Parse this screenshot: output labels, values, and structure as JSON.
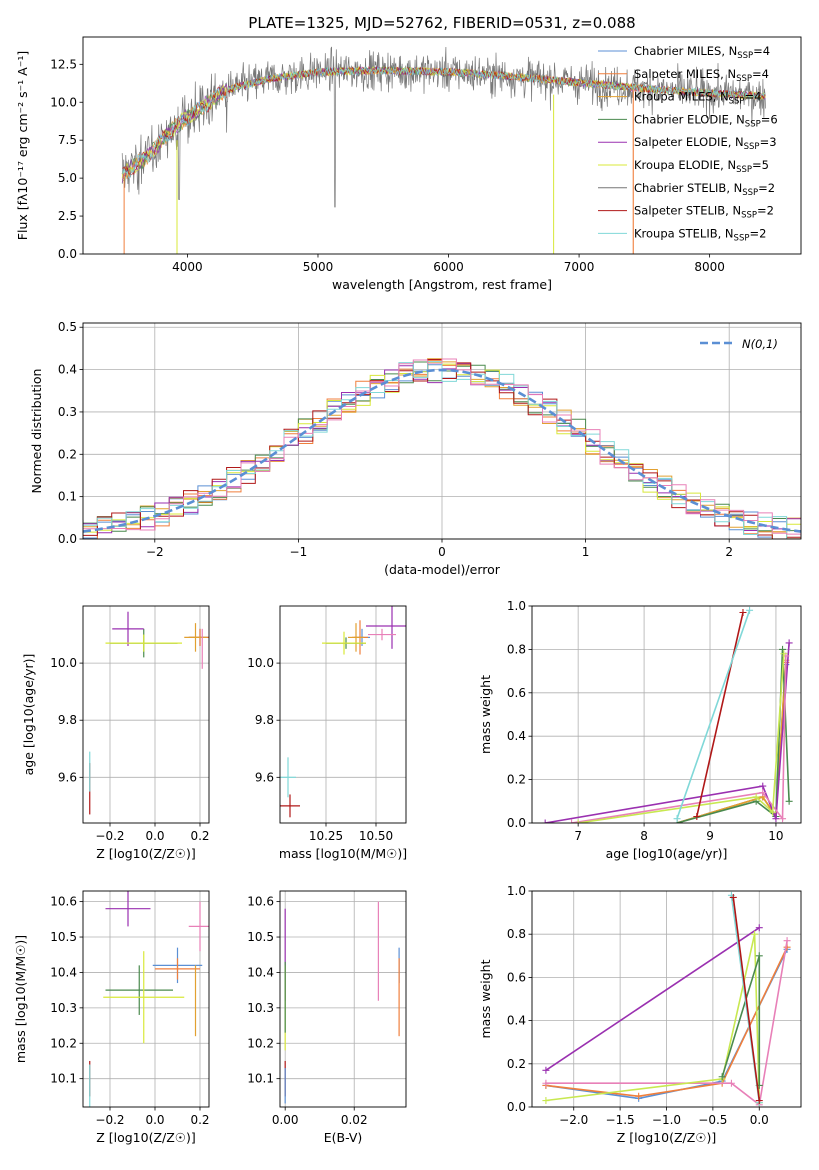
{
  "figure": {
    "title": "PLATE=1325, MJD=52762, FIBERID=0531, z=0.088"
  },
  "colors": {
    "chabrier_miles": "#5b8fd4",
    "salpeter_miles": "#f07f3c",
    "kroupa_miles": "#e2a030",
    "chabrier_elodie": "#4a8a4e",
    "salpeter_elodie": "#9a30b0",
    "kroupa_elodie": "#d8e83a",
    "chabrier_stelib": "#777777",
    "salpeter_stelib": "#b01818",
    "kroupa_stelib": "#80d8d8",
    "purple_line": "#9a30b0",
    "pink_line": "#e880b8",
    "green_line": "#c8e850",
    "normal_curve": "#5b8fd4"
  },
  "chart_data": [
    {
      "id": "spectrum",
      "type": "line",
      "xlabel": "wavelength [Angstrom, rest frame]",
      "ylabel": "Flux [fλ10⁻¹⁷ erg cm⁻² s⁻¹ A⁻¹]",
      "xlim": [
        3200,
        8700
      ],
      "ylim": [
        0,
        14.3
      ],
      "xticks": [
        4000,
        5000,
        6000,
        7000,
        8000
      ],
      "yticks": [
        0.0,
        2.5,
        5.0,
        7.5,
        10.0,
        12.5
      ],
      "data_range": [
        3500,
        8430
      ],
      "continuum": [
        [
          3500,
          5.2
        ],
        [
          3700,
          6.5
        ],
        [
          3900,
          8.4
        ],
        [
          4100,
          9.6
        ],
        [
          4300,
          10.8
        ],
        [
          4600,
          11.5
        ],
        [
          5000,
          12.0
        ],
        [
          5500,
          12.1
        ],
        [
          6000,
          12.0
        ],
        [
          6500,
          11.7
        ],
        [
          7000,
          11.3
        ],
        [
          7500,
          10.9
        ],
        [
          8000,
          10.6
        ],
        [
          8430,
          10.4
        ]
      ],
      "legend": [
        {
          "label": "Chabrier MILES, N",
          "sub": "SSP",
          "value": "=4"
        },
        {
          "label": "Salpeter MILES, N",
          "sub": "SSP",
          "value": "=4"
        },
        {
          "label": "Kroupa MILES, N",
          "sub": "SSP",
          "value": "=4"
        },
        {
          "label": "Chabrier ELODIE, N",
          "sub": "SSP",
          "value": "=6"
        },
        {
          "label": "Salpeter ELODIE, N",
          "sub": "SSP",
          "value": "=3"
        },
        {
          "label": "Kroupa ELODIE, N",
          "sub": "SSP",
          "value": "=5"
        },
        {
          "label": "Chabrier STELIB, N",
          "sub": "SSP",
          "value": "=2"
        },
        {
          "label": "Salpeter STELIB, N",
          "sub": "SSP",
          "value": "=2"
        },
        {
          "label": "Kroupa STELIB, N",
          "sub": "SSP",
          "value": "=2"
        }
      ]
    },
    {
      "id": "residuals",
      "type": "step",
      "xlabel": "(data-model)/error",
      "ylabel": "Normed distribution",
      "xlim": [
        -2.5,
        2.5
      ],
      "ylim": [
        0,
        0.51
      ],
      "xticks": [
        -2,
        -1,
        0,
        1,
        2
      ],
      "yticks": [
        0.0,
        0.1,
        0.2,
        0.3,
        0.4,
        0.5
      ],
      "bin_width": 0.1,
      "legend": "N(0,1)"
    },
    {
      "id": "age_vs_z",
      "type": "errorbar",
      "xlabel": "Z [log10(Z/Z☉)]",
      "ylabel": "age  [log10(age/yr)]",
      "xlim": [
        -0.32,
        0.24
      ],
      "ylim": [
        9.44,
        10.2
      ],
      "xticks": [
        -0.2,
        0.0,
        0.2
      ],
      "yticks": [
        9.6,
        9.8,
        10.0
      ],
      "points": [
        {
          "c": "chabrier_miles",
          "x": 0.2,
          "xe": 0.05,
          "y": 10.09,
          "ye": 0.03
        },
        {
          "c": "salpeter_miles",
          "x": 0.2,
          "xe": 0.05,
          "y": 10.09,
          "ye": 0.03
        },
        {
          "c": "kroupa_miles",
          "x": 0.18,
          "xe": 0.05,
          "y": 10.09,
          "ye": 0.05
        },
        {
          "c": "chabrier_elodie",
          "x": -0.05,
          "xe": 0.15,
          "y": 10.07,
          "ye": 0.05
        },
        {
          "c": "salpeter_elodie",
          "x": -0.12,
          "xe": 0.07,
          "y": 10.12,
          "ye": 0.06
        },
        {
          "c": "kroupa_elodie",
          "x": -0.05,
          "xe": 0.17,
          "y": 10.07,
          "ye": 0.03
        },
        {
          "c": "salpeter_stelib",
          "x": -0.29,
          "xe": 0.0,
          "y": 9.56,
          "ye": 0.09
        },
        {
          "c": "kroupa_stelib",
          "x": -0.29,
          "xe": 0.0,
          "y": 9.62,
          "ye": 0.07
        },
        {
          "c": "pink_line",
          "x": 0.21,
          "xe": 0.0,
          "y": 10.05,
          "ye": 0.07
        }
      ]
    },
    {
      "id": "age_vs_mass",
      "type": "errorbar",
      "xlabel": "mass [log10(M/M☉)]",
      "ylabel": "",
      "xlim": [
        10.02,
        10.65
      ],
      "ylim": [
        9.44,
        10.2
      ],
      "xticks": [
        10.25,
        10.5
      ],
      "yticks": [
        9.6,
        9.8,
        10.0
      ],
      "points": [
        {
          "c": "chabrier_miles",
          "x": 10.43,
          "xe": 0.04,
          "y": 10.09,
          "ye": 0.03
        },
        {
          "c": "salpeter_miles",
          "x": 10.42,
          "xe": 0.04,
          "y": 10.09,
          "ye": 0.06
        },
        {
          "c": "kroupa_miles",
          "x": 10.4,
          "xe": 0.04,
          "y": 10.09,
          "ye": 0.05
        },
        {
          "c": "chabrier_elodie",
          "x": 10.35,
          "xe": 0.1,
          "y": 10.07,
          "ye": 0.02
        },
        {
          "c": "salpeter_elodie",
          "x": 10.58,
          "xe": 0.13,
          "y": 10.13,
          "ye": 0.08
        },
        {
          "c": "kroupa_elodie",
          "x": 10.34,
          "xe": 0.11,
          "y": 10.07,
          "ye": 0.04
        },
        {
          "c": "salpeter_stelib",
          "x": 10.07,
          "xe": 0.05,
          "y": 9.5,
          "ye": 0.04
        },
        {
          "c": "kroupa_stelib",
          "x": 10.06,
          "xe": 0.04,
          "y": 9.6,
          "ye": 0.07
        },
        {
          "c": "pink_line",
          "x": 10.53,
          "xe": 0.07,
          "y": 10.1,
          "ye": 0.02
        }
      ]
    },
    {
      "id": "weight_vs_age",
      "type": "line",
      "xlabel": "age  [log10(age/yr)]",
      "ylabel": "mass weight",
      "xlim": [
        6.3,
        10.38
      ],
      "ylim": [
        0,
        1.0
      ],
      "xticks": [
        7,
        8,
        9,
        10
      ],
      "yticks": [
        0.0,
        0.2,
        0.4,
        0.6,
        0.8,
        1.0
      ],
      "series": [
        {
          "c": "chabrier_miles",
          "x": [
            8.5,
            9.8,
            10.0,
            10.15
          ],
          "y": [
            0.0,
            0.12,
            0.03,
            0.73
          ]
        },
        {
          "c": "salpeter_miles",
          "x": [
            8.5,
            9.8,
            10.0,
            10.15
          ],
          "y": [
            0.0,
            0.12,
            0.03,
            0.74
          ]
        },
        {
          "c": "kroupa_miles",
          "x": [
            8.5,
            9.8,
            10.0,
            10.15
          ],
          "y": [
            0.0,
            0.12,
            0.03,
            0.75
          ]
        },
        {
          "c": "chabrier_elodie",
          "x": [
            8.5,
            9.7,
            10.0,
            10.1,
            10.2
          ],
          "y": [
            0.0,
            0.1,
            0.03,
            0.8,
            0.1
          ]
        },
        {
          "c": "purple_line",
          "x": [
            6.5,
            9.8,
            10.0,
            10.2
          ],
          "y": [
            0.0,
            0.17,
            0.02,
            0.83
          ]
        },
        {
          "c": "pink_line",
          "x": [
            6.9,
            9.8,
            10.1,
            10.15
          ],
          "y": [
            0.0,
            0.14,
            0.02,
            0.77
          ]
        },
        {
          "c": "green_line",
          "x": [
            7.0,
            9.7,
            9.95,
            10.12
          ],
          "y": [
            0.0,
            0.12,
            0.05,
            0.78
          ]
        },
        {
          "c": "salpeter_stelib",
          "x": [
            8.8,
            9.5
          ],
          "y": [
            0.03,
            0.97
          ]
        },
        {
          "c": "kroupa_stelib",
          "x": [
            8.5,
            9.6
          ],
          "y": [
            0.02,
            0.98
          ]
        }
      ]
    },
    {
      "id": "mass_vs_z",
      "type": "errorbar",
      "xlabel": "Z [log10(Z/Z☉)]",
      "ylabel": "mass [log10(M/M☉)]",
      "xlim": [
        -0.32,
        0.24
      ],
      "ylim": [
        10.02,
        10.63
      ],
      "xticks": [
        -0.2,
        0.0,
        0.2
      ],
      "yticks": [
        10.1,
        10.2,
        10.3,
        10.4,
        10.5,
        10.6
      ],
      "points": [
        {
          "c": "chabrier_miles",
          "x": 0.1,
          "xe": 0.11,
          "y": 10.42,
          "ye": 0.05
        },
        {
          "c": "salpeter_miles",
          "x": 0.1,
          "xe": 0.1,
          "y": 10.41,
          "ye": 0.03
        },
        {
          "c": "kroupa_miles",
          "x": 0.18,
          "xe": 0.0,
          "y": 10.32,
          "ye": 0.1
        },
        {
          "c": "chabrier_elodie",
          "x": -0.07,
          "xe": 0.15,
          "y": 10.35,
          "ye": 0.07
        },
        {
          "c": "salpeter_elodie",
          "x": -0.12,
          "xe": 0.1,
          "y": 10.58,
          "ye": 0.05
        },
        {
          "c": "kroupa_elodie",
          "x": -0.05,
          "xe": 0.18,
          "y": 10.33,
          "ye": 0.13
        },
        {
          "c": "salpeter_stelib",
          "x": -0.29,
          "xe": 0.0,
          "y": 10.1,
          "ye": 0.05
        },
        {
          "c": "kroupa_stelib",
          "x": -0.29,
          "xe": 0.0,
          "y": 10.08,
          "ye": 0.06
        },
        {
          "c": "pink_line",
          "x": 0.2,
          "xe": 0.05,
          "y": 10.53,
          "ye": 0.07
        }
      ]
    },
    {
      "id": "mass_vs_ebv",
      "type": "errorbar",
      "xlabel": "E(B-V)",
      "ylabel": "",
      "xlim": [
        -0.0015,
        0.035
      ],
      "ylim": [
        10.02,
        10.63
      ],
      "xticks": [
        0.0,
        0.02
      ],
      "yticks": [
        10.1,
        10.2,
        10.3,
        10.4,
        10.5,
        10.6
      ],
      "points": [
        {
          "c": "chabrier_miles",
          "x": 0.033,
          "xe": 0.0,
          "y": 10.42,
          "ye": 0.05
        },
        {
          "c": "salpeter_miles",
          "x": 0.033,
          "xe": 0.0,
          "y": 10.33,
          "ye": 0.11
        },
        {
          "c": "pink_line",
          "x": 0.027,
          "xe": 0.0,
          "y": 10.46,
          "ye": 0.14
        },
        {
          "c": "salpeter_elodie",
          "x": 0.0,
          "xe": 0.0,
          "y": 10.45,
          "ye": 0.13
        },
        {
          "c": "kroupa_elodie",
          "x": 0.0,
          "xe": 0.0,
          "y": 10.3,
          "ye": 0.12
        },
        {
          "c": "chabrier_elodie",
          "x": 0.0,
          "xe": 0.0,
          "y": 10.33,
          "ye": 0.1
        },
        {
          "c": "salpeter_stelib",
          "x": 0.0,
          "xe": 0.0,
          "y": 10.1,
          "ye": 0.05
        },
        {
          "c": "chabrier_miles",
          "x": 0.0,
          "xe": 0.0,
          "y": 10.08,
          "ye": 0.05
        }
      ]
    },
    {
      "id": "weight_vs_z",
      "type": "line",
      "xlabel": "Z [log10(Z/Z☉)]",
      "ylabel": "mass weight",
      "xlim": [
        -2.45,
        0.45
      ],
      "ylim": [
        0,
        1.0
      ],
      "xticks": [
        -2.0,
        -1.5,
        -1.0,
        -0.5,
        0.0
      ],
      "yticks": [
        0.0,
        0.2,
        0.4,
        0.6,
        0.8,
        1.0
      ],
      "series": [
        {
          "c": "chabrier_miles",
          "x": [
            -2.3,
            -1.3,
            -0.4,
            0.3
          ],
          "y": [
            0.1,
            0.04,
            0.12,
            0.73
          ]
        },
        {
          "c": "salpeter_miles",
          "x": [
            -2.3,
            -1.3,
            -0.4,
            0.3
          ],
          "y": [
            0.1,
            0.05,
            0.11,
            0.74
          ]
        },
        {
          "c": "purple_line",
          "x": [
            -2.3,
            0.0
          ],
          "y": [
            0.17,
            0.83
          ]
        },
        {
          "c": "pink_line",
          "x": [
            -2.3,
            -0.3,
            0.0,
            0.3
          ],
          "y": [
            0.11,
            0.11,
            0.01,
            0.77
          ]
        },
        {
          "c": "green_line",
          "x": [
            -2.3,
            -0.4,
            -0.05,
            0.0
          ],
          "y": [
            0.03,
            0.13,
            0.8,
            0.02
          ]
        },
        {
          "c": "chabrier_elodie",
          "x": [
            -0.4,
            0.0,
            0.0
          ],
          "y": [
            0.14,
            0.7,
            0.1
          ]
        },
        {
          "c": "kroupa_stelib",
          "x": [
            -0.3,
            0.0
          ],
          "y": [
            0.98,
            0.02
          ]
        },
        {
          "c": "salpeter_stelib",
          "x": [
            -0.28,
            0.0
          ],
          "y": [
            0.97,
            0.03
          ]
        }
      ]
    }
  ]
}
